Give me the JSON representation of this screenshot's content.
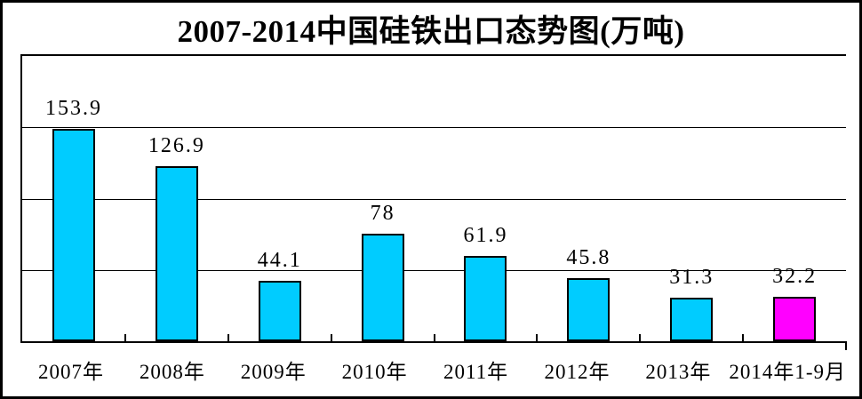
{
  "chart_data": {
    "type": "bar",
    "title": "2007-2014中国硅铁出口态势图(万吨)",
    "unit": "万吨",
    "categories": [
      "2007年",
      "2008年",
      "2009年",
      "2010年",
      "2011年",
      "2012年",
      "2013年",
      "2014年1-9月"
    ],
    "values": [
      153.9,
      126.9,
      44.1,
      78,
      61.9,
      45.8,
      31.3,
      32.2
    ],
    "data_labels": [
      "153.9",
      "126.9",
      "44.1",
      "78",
      "61.9",
      "45.8",
      "31.3",
      "32.2"
    ],
    "bar_fills": [
      "#00CCFF",
      "#00CCFF",
      "#00CCFF",
      "#00CCFF",
      "#00CCFF",
      "#00CCFF",
      "#00CCFF",
      "#FF00FF"
    ],
    "xlabel": "",
    "ylabel": "",
    "ylim": [
      0,
      207
    ],
    "y_axis_labels": "none",
    "gridlines": "horizontal, 4 equal intervals",
    "legend_position": "none"
  },
  "colors": {
    "default_bar": "#00CCFF",
    "highlight_bar": "#FF00FF",
    "bar_border": "#000000",
    "axis": "#000000",
    "background": "#FFFFFF"
  }
}
